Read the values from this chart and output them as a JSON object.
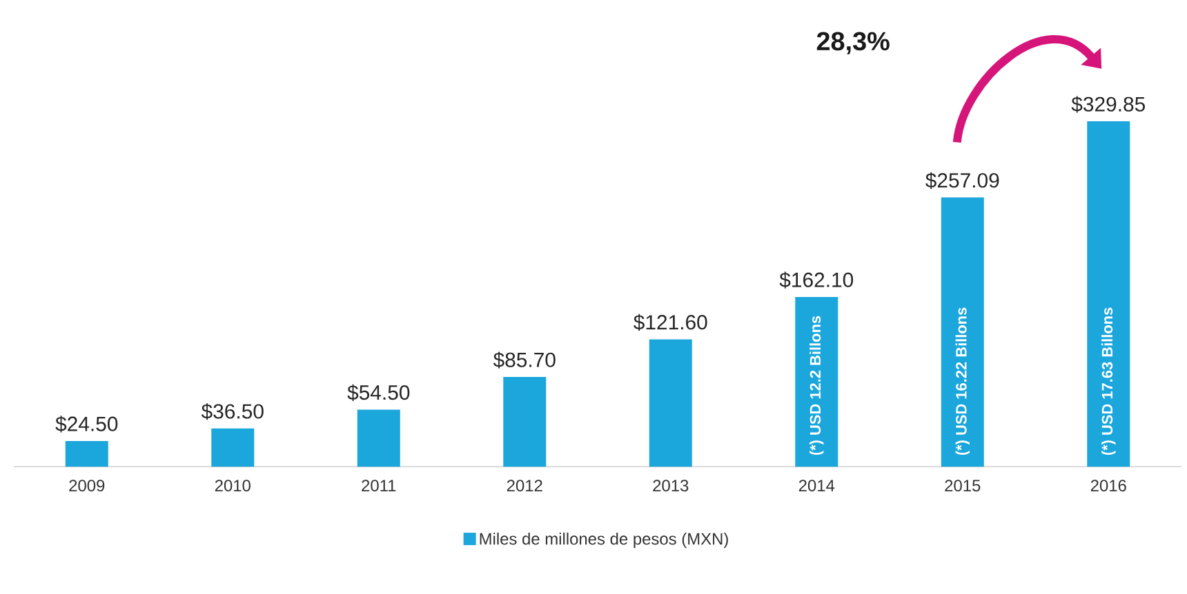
{
  "chart_data": {
    "type": "bar",
    "categories": [
      "2009",
      "2010",
      "2011",
      "2012",
      "2013",
      "2014",
      "2015",
      "2016"
    ],
    "series": [
      {
        "name": "Miles de millones de pesos (MXN)",
        "color": "#1ba6dc",
        "values": [
          24.5,
          36.5,
          54.5,
          85.7,
          121.6,
          162.1,
          257.09,
          329.85
        ],
        "value_labels": [
          "$24.50",
          "$36.50",
          "$54.50",
          "$85.70",
          "$121.60",
          "$162.10",
          "$257.09",
          "$329.85"
        ]
      }
    ],
    "annotations": [
      "28,3%",
      "(*) USD 12.2 Billons",
      "(*) USD 16.22 Billons",
      "(*) USD 17.63 Billons"
    ],
    "legend": "bottom",
    "tick_labels": "x"
  }
}
